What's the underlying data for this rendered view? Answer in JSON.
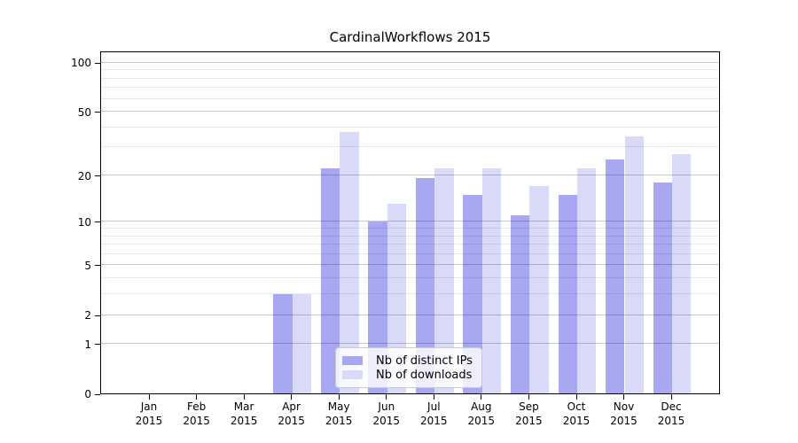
{
  "chart_data": {
    "type": "bar",
    "title": "CardinalWorkflows 2015",
    "yscale": "log1p",
    "ylim": [
      0,
      118
    ],
    "grid": true,
    "legend_position": "lower-center",
    "categories": [
      "Jan 2015",
      "Feb 2015",
      "Mar 2015",
      "Apr 2015",
      "May 2015",
      "Jun 2015",
      "Jul 2015",
      "Aug 2015",
      "Sep 2015",
      "Oct 2015",
      "Nov 2015",
      "Dec 2015"
    ],
    "x_tick_labels": [
      [
        "Jan",
        "2015"
      ],
      [
        "Feb",
        "2015"
      ],
      [
        "Mar",
        "2015"
      ],
      [
        "Apr",
        "2015"
      ],
      [
        "May",
        "2015"
      ],
      [
        "Jun",
        "2015"
      ],
      [
        "Jul",
        "2015"
      ],
      [
        "Aug",
        "2015"
      ],
      [
        "Sep",
        "2015"
      ],
      [
        "Oct",
        "2015"
      ],
      [
        "Nov",
        "2015"
      ],
      [
        "Dec",
        "2015"
      ]
    ],
    "y_major_ticks": [
      0,
      1,
      2,
      5,
      10,
      20,
      50,
      100
    ],
    "y_minor_ticks": [
      3,
      4,
      6,
      7,
      8,
      9,
      30,
      40,
      60,
      70,
      80,
      90
    ],
    "series": [
      {
        "name": "Nb of distinct IPs",
        "color": "#a8a8f2",
        "values": [
          0,
          0,
          0,
          3,
          22,
          10,
          19,
          15,
          11,
          15,
          25,
          18
        ]
      },
      {
        "name": "Nb of downloads",
        "color": "#d9d9f8",
        "values": [
          0,
          0,
          0,
          3,
          37,
          13,
          22,
          22,
          17,
          22,
          35,
          27
        ]
      }
    ]
  },
  "colors": {
    "spine": "#000000",
    "grid_major": "#c9c9c9",
    "grid_minor": "#e8e8e8",
    "legend_border": "#cccccc",
    "background": "#ffffff"
  }
}
